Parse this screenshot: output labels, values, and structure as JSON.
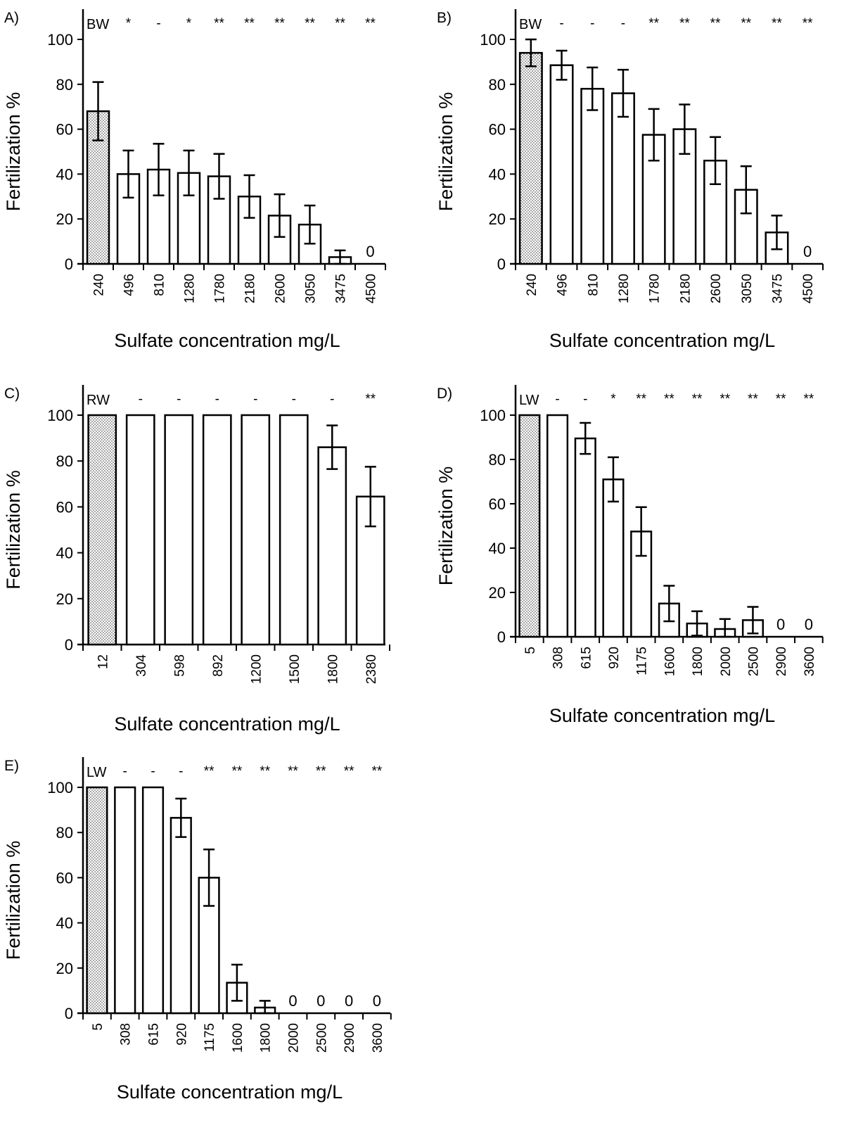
{
  "chart_data": [
    {
      "type": "bar",
      "panel_label": "A)",
      "control_label": "BW",
      "xlabel": "Sulfate concentration mg/L",
      "ylabel": "Fertilization %",
      "ylim": [
        0,
        100
      ],
      "yticks": [
        "0",
        "20",
        "40",
        "60",
        "80",
        "100"
      ],
      "categories": [
        "240",
        "496",
        "810",
        "1280",
        "1780",
        "2180",
        "2600",
        "3050",
        "3475",
        "4500"
      ],
      "values": [
        68,
        40,
        42,
        40.5,
        39,
        30,
        21.5,
        17.5,
        3,
        0
      ],
      "errors": [
        13,
        10.5,
        11.5,
        10,
        10,
        9.5,
        9.5,
        8.5,
        3,
        0
      ],
      "significance": [
        "",
        "*",
        "-",
        "*",
        "**",
        "**",
        "**",
        "**",
        "**",
        "**"
      ],
      "value_labels": [
        "",
        "",
        "",
        "",
        "",
        "",
        "",
        "",
        "",
        "0"
      ],
      "control_fill": "stippled",
      "grid": false
    },
    {
      "type": "bar",
      "panel_label": "B)",
      "control_label": "BW",
      "xlabel": "Sulfate concentration mg/L",
      "ylabel": "Fertilization %",
      "ylim": [
        0,
        100
      ],
      "yticks": [
        "0",
        "20",
        "40",
        "60",
        "80",
        "100"
      ],
      "categories": [
        "240",
        "496",
        "810",
        "1280",
        "1780",
        "2180",
        "2600",
        "3050",
        "3475",
        "4500"
      ],
      "values": [
        94,
        88.5,
        78,
        76,
        57.5,
        60,
        46,
        33,
        14,
        0
      ],
      "errors": [
        6,
        6.5,
        9.5,
        10.5,
        11.5,
        11,
        10.5,
        10.5,
        7.5,
        0
      ],
      "significance": [
        "",
        "-",
        "-",
        "-",
        "**",
        "**",
        "**",
        "**",
        "**",
        "**"
      ],
      "value_labels": [
        "",
        "",
        "",
        "",
        "",
        "",
        "",
        "",
        "",
        "0"
      ],
      "control_fill": "stippled",
      "grid": false
    },
    {
      "type": "bar",
      "panel_label": "C)",
      "control_label": "RW",
      "xlabel": "Sulfate concentration mg/L",
      "ylabel": "Fertilization %",
      "ylim": [
        0,
        100
      ],
      "yticks": [
        "0",
        "20",
        "40",
        "60",
        "80",
        "100"
      ],
      "categories": [
        "12",
        "304",
        "598",
        "892",
        "1200",
        "1500",
        "1800",
        "2380"
      ],
      "values": [
        100,
        100,
        100,
        100,
        100,
        100,
        86,
        64.5
      ],
      "errors": [
        0,
        0,
        0,
        0,
        0,
        0,
        9.5,
        13
      ],
      "significance": [
        "",
        "-",
        "-",
        "-",
        "-",
        "-",
        "-",
        "**"
      ],
      "value_labels": [
        "",
        "",
        "",
        "",
        "",
        "",
        "",
        ""
      ],
      "control_fill": "stippled",
      "grid": false
    },
    {
      "type": "bar",
      "panel_label": "D)",
      "control_label": "LW",
      "xlabel": "Sulfate concentration mg/L",
      "ylabel": "Fertilization %",
      "ylim": [
        0,
        100
      ],
      "yticks": [
        "0",
        "20",
        "40",
        "60",
        "80",
        "100"
      ],
      "categories": [
        "5",
        "308",
        "615",
        "920",
        "1175",
        "1600",
        "1800",
        "2000",
        "2500",
        "2900",
        "3600"
      ],
      "values": [
        100,
        100,
        89.5,
        71,
        47.5,
        15,
        6,
        3.5,
        7.5,
        0,
        0
      ],
      "errors": [
        0,
        0,
        7,
        10,
        11,
        8,
        5.5,
        4.5,
        6,
        0,
        0
      ],
      "significance": [
        "",
        "-",
        "-",
        "*",
        "**",
        "**",
        "**",
        "**",
        "**",
        "**",
        "**"
      ],
      "value_labels": [
        "",
        "",
        "",
        "",
        "",
        "",
        "",
        "",
        "",
        "0",
        "0"
      ],
      "control_fill": "stippled",
      "grid": false
    },
    {
      "type": "bar",
      "panel_label": "E)",
      "control_label": "LW",
      "xlabel": "Sulfate concentration mg/L",
      "ylabel": "Fertilization %",
      "ylim": [
        0,
        100
      ],
      "yticks": [
        "0",
        "20",
        "40",
        "60",
        "80",
        "100"
      ],
      "categories": [
        "5",
        "308",
        "615",
        "920",
        "1175",
        "1600",
        "1800",
        "2000",
        "2500",
        "2900",
        "3600"
      ],
      "values": [
        100,
        100,
        100,
        86.5,
        60,
        13.5,
        2.5,
        0,
        0,
        0,
        0
      ],
      "errors": [
        0,
        0,
        0,
        8.5,
        12.5,
        8,
        3,
        0,
        0,
        0,
        0
      ],
      "significance": [
        "",
        "-",
        "-",
        "-",
        "**",
        "**",
        "**",
        "**",
        "**",
        "**",
        "**"
      ],
      "value_labels": [
        "",
        "",
        "",
        "",
        "",
        "",
        "",
        "0",
        "0",
        "0",
        "0"
      ],
      "control_fill": "stippled",
      "grid": false
    }
  ]
}
